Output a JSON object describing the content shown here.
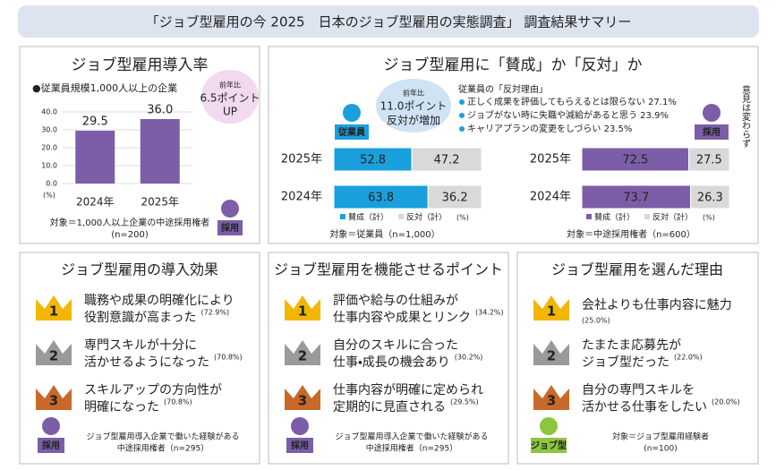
{
  "header": {
    "title": "「ジョブ型雇用の今 2025　日本のジョブ型雇用の実態調査」 調査結果サマリー"
  },
  "adoption": {
    "type": "bar",
    "title": "ジョブ型雇用導入率",
    "subtitle": "●従業員規模1,000人以上の企業",
    "categories": [
      "2024年",
      "2025年"
    ],
    "values": [
      29.5,
      36.0
    ],
    "value_labels": [
      "29.5",
      "36.0"
    ],
    "color": "#7b5ea7",
    "ylim": [
      0,
      40
    ],
    "yticks": [
      {
        "value": 0,
        "label": "0.0"
      },
      {
        "value": 10,
        "label": "10.0"
      },
      {
        "value": 20,
        "label": "20.0"
      },
      {
        "value": 30,
        "label": "30.0"
      },
      {
        "value": 40,
        "label": "40.0"
      }
    ],
    "unit": "(%)",
    "callout": [
      "前年比",
      "6.5ポイント",
      "UP"
    ],
    "icon": "採用",
    "note": [
      "対象＝1,000人以上企業の中途採用権者",
      "(n=200)"
    ]
  },
  "opinion": {
    "title": "ジョブ型雇用に「賛成」か「反対」か",
    "employee": {
      "type": "stacked-bar",
      "icon": "従業員",
      "categories": [
        "2025年",
        "2024年"
      ],
      "xlim": [
        0,
        100
      ],
      "series": [
        {
          "name": "賛成（計）",
          "color": "#1aa0dc",
          "values": [
            52.8,
            63.8
          ]
        },
        {
          "name": "反対（計）",
          "color": "#d9d9d9",
          "values": [
            47.2,
            36.2
          ]
        }
      ],
      "callout": [
        "前年比",
        "11.0ポイント",
        "反対が増加"
      ],
      "unit": "(%)",
      "note": "対象＝従業員（n=1,000）"
    },
    "reasons": {
      "title": "従業員の「反対理由」",
      "items": [
        "正しく成果を評価してもらえるとは限らない 27.1%",
        "ジョブがない時に失職や減給があると思う 23.9%",
        "キャリアプランの変更をしづらい 23.5%"
      ]
    },
    "recruiter": {
      "type": "stacked-bar",
      "icon": "採用",
      "categories": [
        "2025年",
        "2024年"
      ],
      "xlim": [
        0,
        100
      ],
      "series": [
        {
          "name": "賛成（計）",
          "color": "#7b5ea7",
          "values": [
            72.5,
            73.7
          ]
        },
        {
          "name": "反対（計）",
          "color": "#d9d9d9",
          "values": [
            27.5,
            26.3
          ]
        }
      ],
      "unit": "(%)",
      "note": "対象＝中途採用権者（n=600）"
    },
    "remark": "意見は変わらず"
  },
  "panels": [
    {
      "title": "ジョブ型雇用の導入効果",
      "icon": "採用",
      "note": [
        "ジョブ型雇用導入企業で働いた経験がある",
        "中途採用権者（n=295）"
      ],
      "items": [
        {
          "rank": "1",
          "text": [
            "職務や成果の明確化により",
            "役割意識が高まった"
          ],
          "pct": "(72.9%)"
        },
        {
          "rank": "2",
          "text": [
            "専門スキルが十分に",
            "活かせるようになった"
          ],
          "pct": "(70.8%)"
        },
        {
          "rank": "3",
          "text": [
            "スキルアップの方向性が",
            "明確になった"
          ],
          "pct": "(70.8%)"
        }
      ]
    },
    {
      "title": "ジョブ型雇用を機能させるポイント",
      "icon": "採用",
      "note": [
        "ジョブ型雇用導入企業で働いた経験がある",
        "中途採用権者（n=295）"
      ],
      "items": [
        {
          "rank": "1",
          "text": [
            "評価や給与の仕組みが",
            "仕事内容や成果とリンク"
          ],
          "pct": "(34.2%)"
        },
        {
          "rank": "2",
          "text": [
            "自分のスキルに合った",
            "仕事・成長の機会あり"
          ],
          "pct": "(30.2%)"
        },
        {
          "rank": "3",
          "text": [
            "仕事内容が明確に定められ",
            "定期的に見直される"
          ],
          "pct": "(29.5%)"
        }
      ]
    },
    {
      "title": "ジョブ型雇用を選んだ理由",
      "icon": "ジョブ型",
      "note": [
        "対象＝ジョブ型雇用経験者",
        "(n=100)"
      ],
      "items": [
        {
          "rank": "1",
          "text": [
            "会社よりも仕事内容に魅力"
          ],
          "pct": "(25.0%)"
        },
        {
          "rank": "2",
          "text": [
            "たまたま応募先が",
            "ジョブ型だった"
          ],
          "pct": "(22.0%)"
        },
        {
          "rank": "3",
          "text": [
            "自分の専門スキルを",
            "活かせる仕事をしたい"
          ],
          "pct": "(20.0%)"
        }
      ]
    }
  ]
}
